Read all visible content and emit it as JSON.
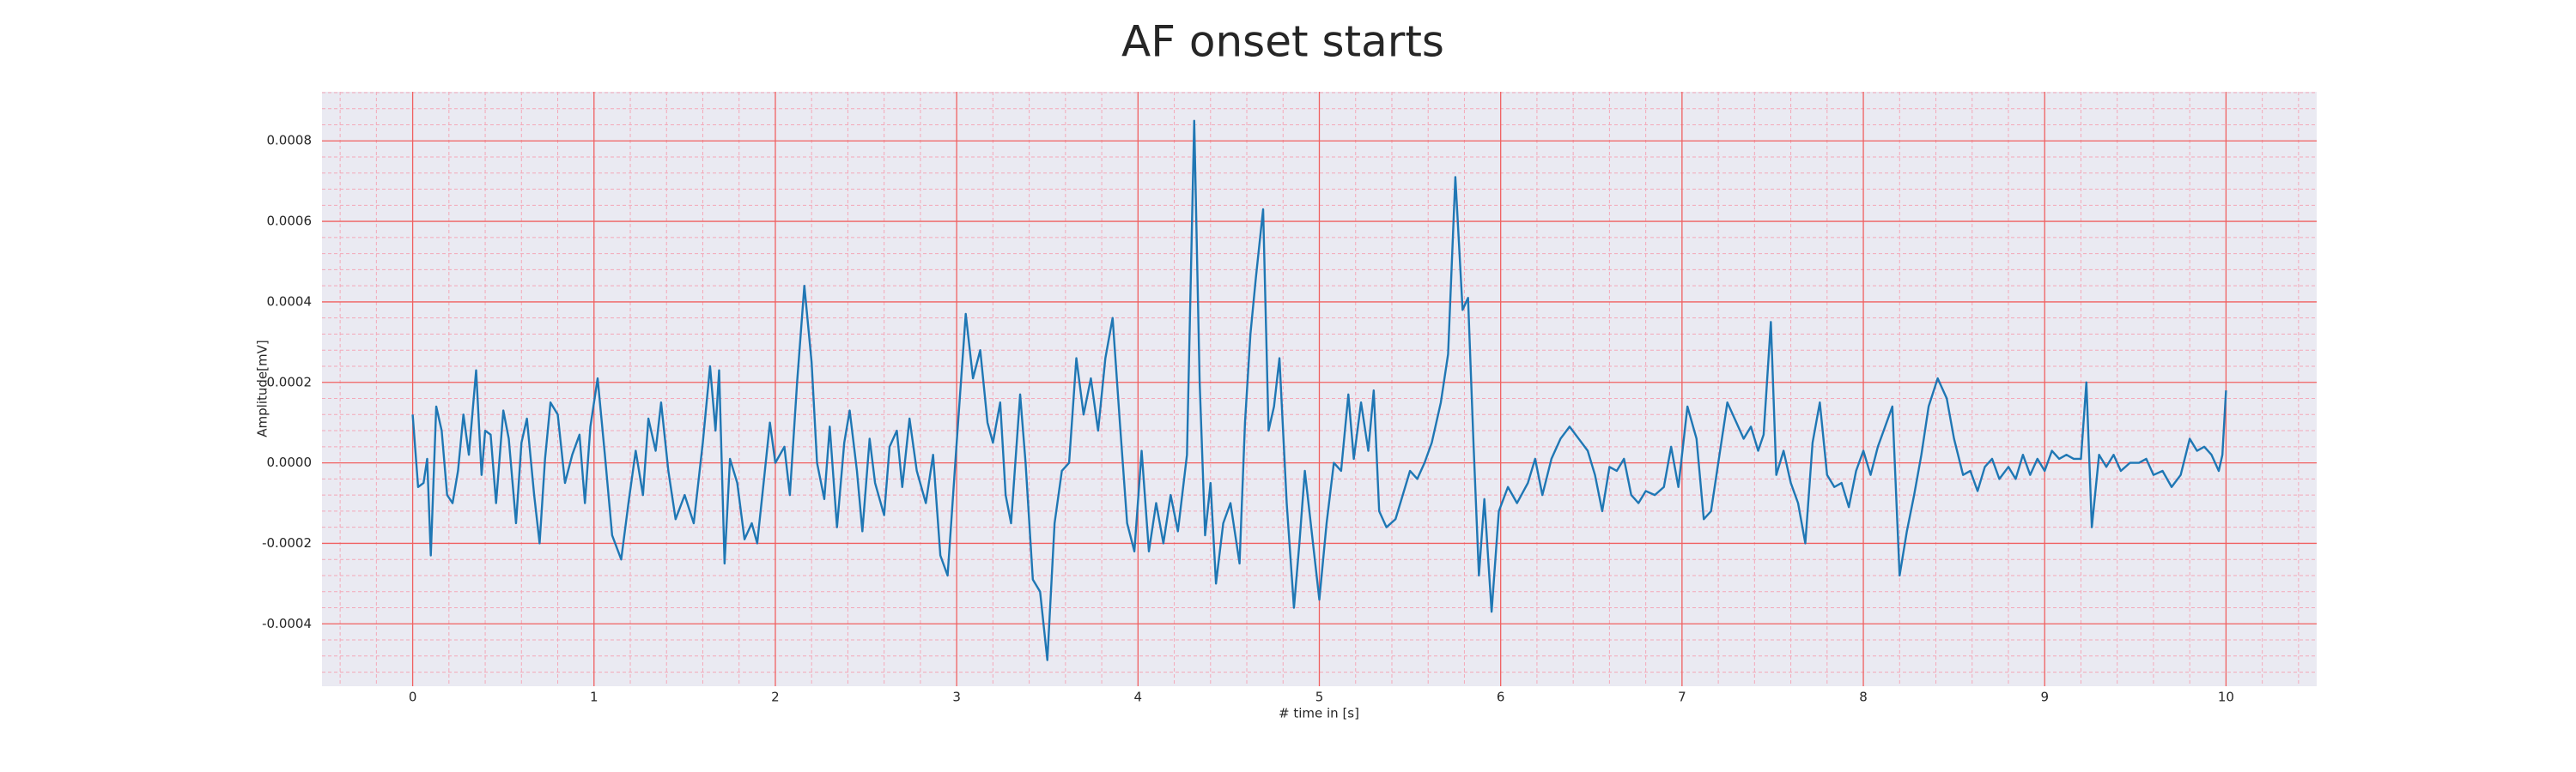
{
  "chart_data": {
    "type": "line",
    "title": "AF onset starts",
    "xlabel": "# time in [s]",
    "ylabel": "Amplitude[mV]",
    "color": "#1f77b4",
    "grid": true,
    "minor_grid": true,
    "xlim": [
      -0.5,
      10.5
    ],
    "ylim": [
      -0.000555,
      0.000922
    ],
    "xticks": [
      0,
      1,
      2,
      3,
      4,
      5,
      6,
      7,
      8,
      9,
      10
    ],
    "yticks": [
      {
        "value": -0.0004,
        "label": "-0.0004"
      },
      {
        "value": -0.0002,
        "label": "-0.0002"
      },
      {
        "value": 0,
        "label": "0.0000"
      },
      {
        "value": 0.0002,
        "label": "0.0002"
      },
      {
        "value": 0.0004,
        "label": "0.0004"
      },
      {
        "value": 0.0006,
        "label": "0.0006"
      },
      {
        "value": 0.0008,
        "label": "0.0008"
      }
    ],
    "x": [
      0,
      0.03,
      0.06,
      0.08,
      0.1,
      0.13,
      0.16,
      0.19,
      0.22,
      0.25,
      0.28,
      0.31,
      0.35,
      0.38,
      0.4,
      0.43,
      0.46,
      0.5,
      0.53,
      0.57,
      0.6,
      0.63,
      0.67,
      0.7,
      0.73,
      0.76,
      0.8,
      0.84,
      0.88,
      0.92,
      0.95,
      0.98,
      1.02,
      1.06,
      1.1,
      1.15,
      1.19,
      1.23,
      1.27,
      1.3,
      1.34,
      1.37,
      1.41,
      1.45,
      1.5,
      1.55,
      1.6,
      1.64,
      1.67,
      1.69,
      1.72,
      1.75,
      1.79,
      1.83,
      1.87,
      1.9,
      1.94,
      1.97,
      2.0,
      2.05,
      2.08,
      2.12,
      2.16,
      2.2,
      2.23,
      2.27,
      2.3,
      2.34,
      2.38,
      2.41,
      2.45,
      2.48,
      2.52,
      2.55,
      2.6,
      2.63,
      2.67,
      2.7,
      2.74,
      2.78,
      2.83,
      2.87,
      2.91,
      2.95,
      3.0,
      3.05,
      3.09,
      3.13,
      3.17,
      3.2,
      3.24,
      3.27,
      3.3,
      3.35,
      3.38,
      3.42,
      3.46,
      3.5,
      3.54,
      3.58,
      3.62,
      3.66,
      3.7,
      3.74,
      3.78,
      3.82,
      3.86,
      3.9,
      3.94,
      3.98,
      4.02,
      4.06,
      4.1,
      4.14,
      4.18,
      4.22,
      4.27,
      4.31,
      4.34,
      4.37,
      4.4,
      4.43,
      4.47,
      4.51,
      4.56,
      4.59,
      4.62,
      4.65,
      4.69,
      4.72,
      4.75,
      4.78,
      4.82,
      4.86,
      4.89,
      4.92,
      4.96,
      5.0,
      5.04,
      5.08,
      5.12,
      5.16,
      5.19,
      5.23,
      5.27,
      5.3,
      5.33,
      5.37,
      5.42,
      5.46,
      5.5,
      5.54,
      5.58,
      5.62,
      5.67,
      5.71,
      5.75,
      5.79,
      5.82,
      5.85,
      5.88,
      5.91,
      5.95,
      5.99,
      6.04,
      6.09,
      6.15,
      6.19,
      6.23,
      6.28,
      6.33,
      6.38,
      6.43,
      6.48,
      6.52,
      6.56,
      6.6,
      6.64,
      6.68,
      6.72,
      6.76,
      6.8,
      6.85,
      6.9,
      6.94,
      6.98,
      7.03,
      7.08,
      7.12,
      7.16,
      7.2,
      7.25,
      7.3,
      7.34,
      7.38,
      7.42,
      7.45,
      7.49,
      7.52,
      7.56,
      7.6,
      7.64,
      7.68,
      7.72,
      7.76,
      7.8,
      7.84,
      7.88,
      7.92,
      7.96,
      8.0,
      8.04,
      8.08,
      8.12,
      8.16,
      8.2,
      8.24,
      8.28,
      8.32,
      8.36,
      8.41,
      8.46,
      8.5,
      8.55,
      8.59,
      8.63,
      8.67,
      8.71,
      8.75,
      8.8,
      8.84,
      8.88,
      8.92,
      8.96,
      9.0,
      9.04,
      9.08,
      9.12,
      9.16,
      9.2,
      9.23,
      9.26,
      9.3,
      9.34,
      9.38,
      9.42,
      9.47,
      9.52,
      9.56,
      9.6,
      9.65,
      9.7,
      9.75,
      9.8,
      9.84,
      9.88,
      9.92,
      9.96,
      9.98,
      10.0
    ],
    "values": [
      0.00012,
      -6e-05,
      -5e-05,
      1e-05,
      -0.00023,
      0.00014,
      8e-05,
      -8e-05,
      -0.0001,
      -2e-05,
      0.00012,
      2e-05,
      0.00023,
      -3e-05,
      8e-05,
      7e-05,
      -0.0001,
      0.00013,
      6e-05,
      -0.00015,
      5e-05,
      0.00011,
      -8e-05,
      -0.0002,
      1e-05,
      0.00015,
      0.00012,
      -5e-05,
      2e-05,
      7e-05,
      -0.0001,
      9e-05,
      0.00021,
      2e-05,
      -0.00018,
      -0.00024,
      -0.0001,
      3e-05,
      -8e-05,
      0.00011,
      3e-05,
      0.00015,
      -2e-05,
      -0.00014,
      -8e-05,
      -0.00015,
      5e-05,
      0.00024,
      8e-05,
      0.00023,
      -0.00025,
      1e-05,
      -5e-05,
      -0.00019,
      -0.00015,
      -0.0002,
      -3e-05,
      0.0001,
      0,
      4e-05,
      -8e-05,
      0.0002,
      0.00044,
      0.00025,
      0,
      -9e-05,
      9e-05,
      -0.00016,
      5e-05,
      0.00013,
      -2e-05,
      -0.00017,
      6e-05,
      -5e-05,
      -0.00013,
      4e-05,
      8e-05,
      -6e-05,
      0.00011,
      -2e-05,
      -0.0001,
      2e-05,
      -0.00023,
      -0.00028,
      5e-05,
      0.00037,
      0.00021,
      0.00028,
      0.0001,
      5e-05,
      0.00015,
      -8e-05,
      -0.00015,
      0.00017,
      0,
      -0.00029,
      -0.00032,
      -0.00049,
      -0.00015,
      -2e-05,
      0,
      0.00026,
      0.00012,
      0.00021,
      8e-05,
      0.00026,
      0.00036,
      0.0001,
      -0.00015,
      -0.00022,
      3e-05,
      -0.00022,
      -0.0001,
      -0.0002,
      -8e-05,
      -0.00017,
      2e-05,
      0.00085,
      0.0002,
      -0.00018,
      -5e-05,
      -0.0003,
      -0.00015,
      -0.0001,
      -0.00025,
      0.0001,
      0.00032,
      0.00046,
      0.00063,
      8e-05,
      0.00014,
      0.00026,
      -0.0001,
      -0.00036,
      -0.0002,
      -2e-05,
      -0.00018,
      -0.00034,
      -0.00015,
      0,
      -2e-05,
      0.00017,
      1e-05,
      0.00015,
      3e-05,
      0.00018,
      -0.00012,
      -0.00016,
      -0.00014,
      -8e-05,
      -2e-05,
      -4e-05,
      0,
      5e-05,
      0.00015,
      0.00027,
      0.00071,
      0.00038,
      0.00041,
      5e-05,
      -0.00028,
      -9e-05,
      -0.00037,
      -0.00012,
      -6e-05,
      -0.0001,
      -5e-05,
      1e-05,
      -8e-05,
      1e-05,
      6e-05,
      9e-05,
      6e-05,
      3e-05,
      -3e-05,
      -0.00012,
      -1e-05,
      -2e-05,
      1e-05,
      -8e-05,
      -0.0001,
      -7e-05,
      -8e-05,
      -6e-05,
      4e-05,
      -6e-05,
      0.00014,
      6e-05,
      -0.00014,
      -0.00012,
      0,
      0.00015,
      0.0001,
      6e-05,
      9e-05,
      3e-05,
      7e-05,
      0.00035,
      -3e-05,
      3e-05,
      -5e-05,
      -0.0001,
      -0.0002,
      5e-05,
      0.00015,
      -3e-05,
      -6e-05,
      -5e-05,
      -0.00011,
      -2e-05,
      3e-05,
      -3e-05,
      4e-05,
      9e-05,
      0.00014,
      -0.00028,
      -0.00017,
      -8e-05,
      2e-05,
      0.00014,
      0.00021,
      0.00016,
      6e-05,
      -3e-05,
      -2e-05,
      -7e-05,
      -1e-05,
      1e-05,
      -4e-05,
      -1e-05,
      -4e-05,
      2e-05,
      -3e-05,
      1e-05,
      -2e-05,
      3e-05,
      1e-05,
      2e-05,
      1e-05,
      1e-05,
      0.0002,
      -0.00016,
      2e-05,
      -1e-05,
      2e-05,
      -2e-05,
      0,
      0,
      1e-05,
      -3e-05,
      -2e-05,
      -6e-05,
      -3e-05,
      6e-05,
      3e-05,
      4e-05,
      2e-05,
      -2e-05,
      2e-05,
      0.00018
    ]
  }
}
